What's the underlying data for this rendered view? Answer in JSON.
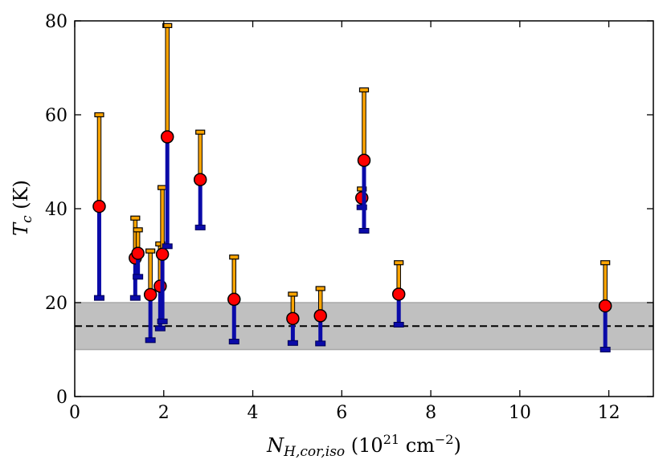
{
  "chart_data": {
    "type": "scatter",
    "title": "",
    "xlabel": {
      "symbol": "N",
      "subscript": "H,cor,iso",
      "unit_prefix": " (10",
      "unit_exp": "21",
      "unit_mid": " cm",
      "unit_exp2": "−2",
      "unit_suffix": ")"
    },
    "ylabel": {
      "symbol": "T",
      "subscript": "c",
      "unit": " (K)"
    },
    "xlim": [
      0,
      13
    ],
    "ylim": [
      0,
      80
    ],
    "xticks": [
      0,
      2,
      4,
      6,
      8,
      10,
      12
    ],
    "yticks": [
      0,
      20,
      40,
      60,
      80
    ],
    "xtick_labels": [
      "0",
      "2",
      "4",
      "6",
      "8",
      "10",
      "12"
    ],
    "ytick_labels": [
      "0",
      "20",
      "40",
      "60",
      "80"
    ],
    "reference_line": {
      "y": 15,
      "style": "dashed",
      "color": "#000000"
    },
    "shaded_band": {
      "y_min": 10,
      "y_max": 20,
      "color": "#c0c0c0"
    },
    "colors": {
      "upper_error": "#ffa500",
      "lower_error": "#0a0aa8",
      "marker_fill": "#ff0000",
      "marker_edge": "#000000"
    },
    "points": [
      {
        "x": 0.55,
        "y": 40.5,
        "upper": 60.0,
        "lower": 21.0
      },
      {
        "x": 1.36,
        "y": 29.5,
        "upper": 38.0,
        "lower": 21.0
      },
      {
        "x": 1.42,
        "y": 30.5,
        "upper": 35.5,
        "lower": 25.5
      },
      {
        "x": 1.7,
        "y": 21.7,
        "upper": 31.0,
        "lower": 12.0
      },
      {
        "x": 1.92,
        "y": 23.5,
        "upper": 32.5,
        "lower": 14.5
      },
      {
        "x": 1.97,
        "y": 30.3,
        "upper": 44.5,
        "lower": 16.0
      },
      {
        "x": 2.08,
        "y": 55.3,
        "upper": 79.0,
        "lower": 32.0
      },
      {
        "x": 2.82,
        "y": 46.2,
        "upper": 56.3,
        "lower": 36.0
      },
      {
        "x": 3.58,
        "y": 20.7,
        "upper": 29.7,
        "lower": 11.7
      },
      {
        "x": 4.9,
        "y": 16.6,
        "upper": 21.8,
        "lower": 11.4
      },
      {
        "x": 5.52,
        "y": 17.2,
        "upper": 23.0,
        "lower": 11.3
      },
      {
        "x": 6.45,
        "y": 42.3,
        "upper": 44.2,
        "lower": 40.3
      },
      {
        "x": 6.5,
        "y": 50.3,
        "upper": 65.3,
        "lower": 35.3
      },
      {
        "x": 7.28,
        "y": 21.8,
        "upper": 28.5,
        "lower": 15.3
      },
      {
        "x": 11.92,
        "y": 19.3,
        "upper": 28.5,
        "lower": 10.0
      }
    ]
  }
}
